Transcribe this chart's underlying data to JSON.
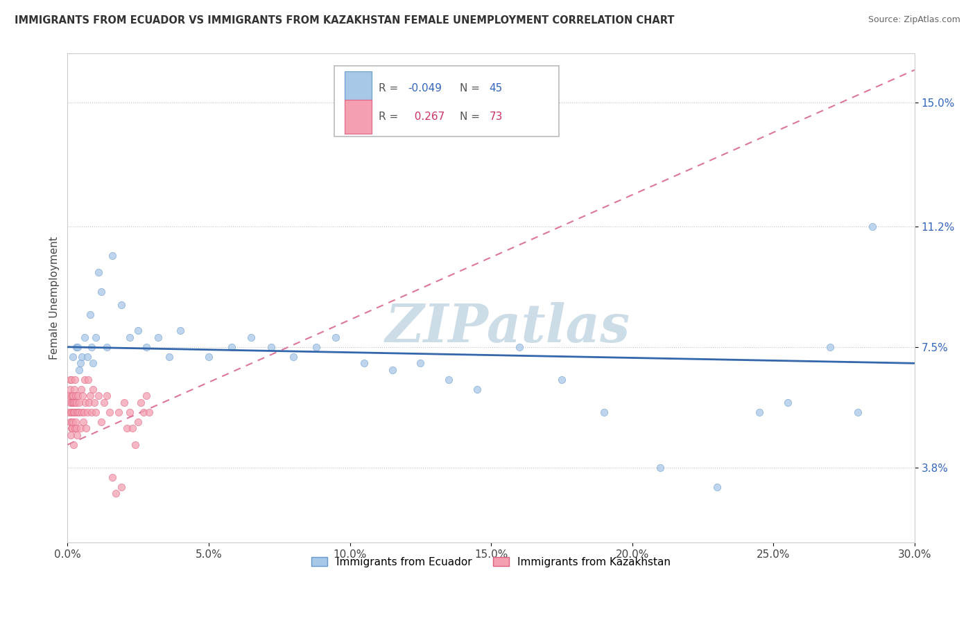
{
  "title": "IMMIGRANTS FROM ECUADOR VS IMMIGRANTS FROM KAZAKHSTAN FEMALE UNEMPLOYMENT CORRELATION CHART",
  "source": "Source: ZipAtlas.com",
  "xlabel_ticks": [
    "0.0%",
    "5.0%",
    "10.0%",
    "15.0%",
    "20.0%",
    "25.0%",
    "30.0%"
  ],
  "xlabel_vals": [
    0.0,
    5.0,
    10.0,
    15.0,
    20.0,
    25.0,
    30.0
  ],
  "ylabel_ticks": [
    "3.8%",
    "7.5%",
    "11.2%",
    "15.0%"
  ],
  "ylabel_vals": [
    3.8,
    7.5,
    11.2,
    15.0
  ],
  "xlim": [
    0.0,
    30.0
  ],
  "ylim": [
    1.5,
    16.5
  ],
  "ecuador_R": -0.049,
  "ecuador_N": 45,
  "kazakhstan_R": 0.267,
  "kazakhstan_N": 73,
  "ecuador_color": "#a8c8e8",
  "ecuador_edge_color": "#6699cc",
  "kazakhstan_color": "#f4a0b0",
  "kazakhstan_edge_color": "#e06080",
  "ecuador_trend_color": "#3366aa",
  "kazakhstan_trend_color": "#dd7799",
  "watermark": "ZIPatlas",
  "watermark_color": "#ccdde8",
  "legend_label_ecuador": "Immigrants from Ecuador",
  "legend_label_kazakhstan": "Immigrants from Kazakhstan",
  "ecuador_x": [
    0.2,
    0.3,
    0.35,
    0.4,
    0.45,
    0.5,
    0.6,
    0.7,
    0.8,
    0.85,
    0.9,
    1.0,
    1.1,
    1.2,
    1.4,
    1.6,
    1.9,
    2.2,
    2.5,
    2.8,
    3.2,
    3.6,
    4.0,
    5.0,
    5.8,
    6.5,
    7.2,
    8.0,
    8.8,
    9.5,
    10.5,
    11.5,
    12.5,
    13.5,
    14.5,
    16.0,
    17.5,
    19.0,
    21.0,
    23.0,
    24.5,
    25.5,
    27.0,
    28.0,
    28.5
  ],
  "ecuador_y": [
    7.2,
    7.5,
    7.5,
    6.8,
    7.0,
    7.2,
    7.8,
    7.2,
    8.5,
    7.5,
    7.0,
    7.8,
    9.8,
    9.2,
    7.5,
    10.3,
    8.8,
    7.8,
    8.0,
    7.5,
    7.8,
    7.2,
    8.0,
    7.2,
    7.5,
    7.8,
    7.5,
    7.2,
    7.5,
    7.8,
    7.0,
    6.8,
    7.0,
    6.5,
    6.2,
    7.5,
    6.5,
    5.5,
    3.8,
    3.2,
    5.5,
    5.8,
    7.5,
    5.5,
    11.2
  ],
  "kazakhstan_x": [
    0.05,
    0.07,
    0.08,
    0.09,
    0.1,
    0.1,
    0.11,
    0.12,
    0.13,
    0.13,
    0.14,
    0.15,
    0.15,
    0.16,
    0.17,
    0.18,
    0.19,
    0.2,
    0.2,
    0.21,
    0.22,
    0.22,
    0.23,
    0.24,
    0.25,
    0.26,
    0.27,
    0.28,
    0.29,
    0.3,
    0.31,
    0.32,
    0.33,
    0.35,
    0.37,
    0.4,
    0.42,
    0.45,
    0.48,
    0.5,
    0.52,
    0.55,
    0.58,
    0.6,
    0.62,
    0.65,
    0.7,
    0.72,
    0.75,
    0.8,
    0.85,
    0.9,
    0.95,
    1.0,
    1.1,
    1.2,
    1.3,
    1.4,
    1.5,
    1.6,
    1.7,
    1.8,
    1.9,
    2.0,
    2.1,
    2.2,
    2.3,
    2.4,
    2.5,
    2.6,
    2.7,
    2.8,
    2.9
  ],
  "kazakhstan_y": [
    5.5,
    6.0,
    5.2,
    6.5,
    5.8,
    6.2,
    4.8,
    5.5,
    5.0,
    5.8,
    6.0,
    5.2,
    6.5,
    5.0,
    5.5,
    6.0,
    5.8,
    5.2,
    6.0,
    5.5,
    5.8,
    4.5,
    6.2,
    5.5,
    5.0,
    6.5,
    5.8,
    5.2,
    6.0,
    5.5,
    5.0,
    5.8,
    4.8,
    5.5,
    6.0,
    5.5,
    5.8,
    5.0,
    6.2,
    5.5,
    6.0,
    5.2,
    5.5,
    6.5,
    5.8,
    5.0,
    5.5,
    6.5,
    5.8,
    6.0,
    5.5,
    6.2,
    5.8,
    5.5,
    6.0,
    5.2,
    5.8,
    6.0,
    5.5,
    3.5,
    3.0,
    5.5,
    3.2,
    5.8,
    5.0,
    5.5,
    5.0,
    4.5,
    5.2,
    5.8,
    5.5,
    6.0,
    5.5
  ]
}
